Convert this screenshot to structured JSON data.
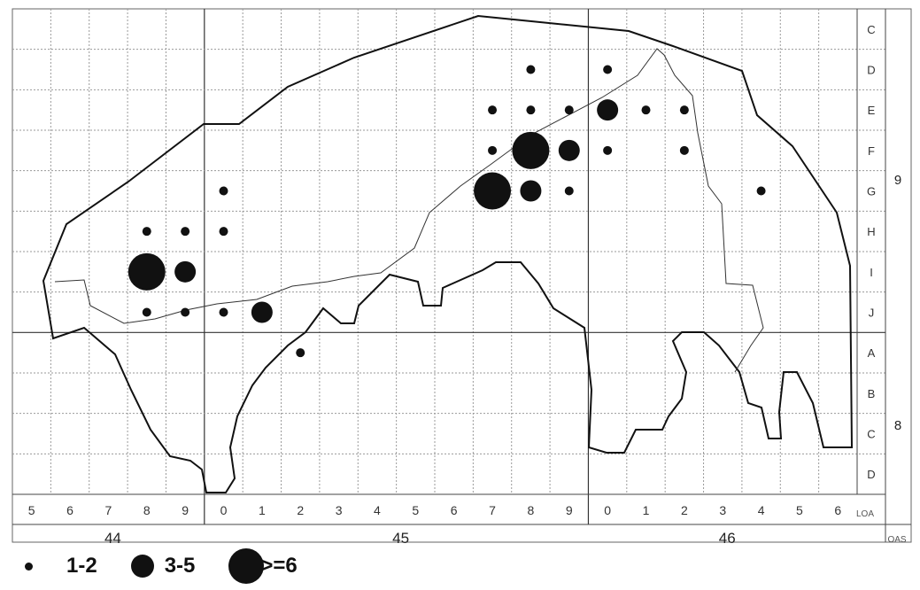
{
  "map": {
    "row_labels_top_block": [
      "C",
      "D",
      "E",
      "F",
      "G",
      "H",
      "I",
      "J"
    ],
    "row_labels_bottom_block": [
      "A",
      "B",
      "C",
      "D"
    ],
    "block_labels": [
      "9",
      "8"
    ],
    "col_labels": [
      "5",
      "6",
      "7",
      "8",
      "9",
      "0",
      "1",
      "2",
      "3",
      "4",
      "5",
      "6",
      "7",
      "8",
      "9",
      "0",
      "1",
      "2",
      "3",
      "4",
      "5",
      "6"
    ],
    "col_axis_label": "LOA",
    "major_col_labels": [
      "44",
      "45",
      "46"
    ],
    "major_axis_label": "OAS",
    "points": [
      {
        "col": 13,
        "row": 1,
        "size": "small"
      },
      {
        "col": 15,
        "row": 1,
        "size": "small"
      },
      {
        "col": 12,
        "row": 2,
        "size": "small"
      },
      {
        "col": 13,
        "row": 2,
        "size": "small"
      },
      {
        "col": 14,
        "row": 2,
        "size": "small"
      },
      {
        "col": 15,
        "row": 2,
        "size": "medium"
      },
      {
        "col": 16,
        "row": 2,
        "size": "small"
      },
      {
        "col": 17,
        "row": 2,
        "size": "small"
      },
      {
        "col": 12,
        "row": 3,
        "size": "small"
      },
      {
        "col": 13,
        "row": 3,
        "size": "large"
      },
      {
        "col": 14,
        "row": 3,
        "size": "medium"
      },
      {
        "col": 15,
        "row": 3,
        "size": "small"
      },
      {
        "col": 17,
        "row": 3,
        "size": "small"
      },
      {
        "col": 5,
        "row": 4,
        "size": "small"
      },
      {
        "col": 12,
        "row": 4,
        "size": "large"
      },
      {
        "col": 13,
        "row": 4,
        "size": "medium"
      },
      {
        "col": 14,
        "row": 4,
        "size": "small"
      },
      {
        "col": 19,
        "row": 4,
        "size": "small"
      },
      {
        "col": 3,
        "row": 5,
        "size": "small"
      },
      {
        "col": 4,
        "row": 5,
        "size": "small"
      },
      {
        "col": 5,
        "row": 5,
        "size": "small"
      },
      {
        "col": 3,
        "row": 6,
        "size": "large"
      },
      {
        "col": 4,
        "row": 6,
        "size": "medium"
      },
      {
        "col": 3,
        "row": 7,
        "size": "small"
      },
      {
        "col": 4,
        "row": 7,
        "size": "small"
      },
      {
        "col": 5,
        "row": 7,
        "size": "small"
      },
      {
        "col": 6,
        "row": 7,
        "size": "medium"
      },
      {
        "col": 7,
        "row": 8,
        "size": "small"
      }
    ]
  },
  "legend": [
    {
      "size": "small",
      "label": "1-2"
    },
    {
      "size": "medium",
      "label": "3-5"
    },
    {
      "size": "large",
      "label": ">=6"
    }
  ],
  "colors": {
    "ink": "#111111",
    "grid": "#8a8a8a",
    "paper": "#ffffff"
  }
}
